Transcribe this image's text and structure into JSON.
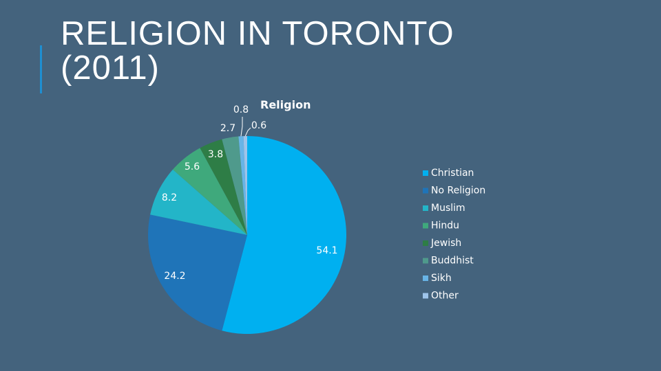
{
  "slide": {
    "title_line1": "RELIGION IN TORONTO",
    "title_line2": "(2011)"
  },
  "chart_data": {
    "type": "pie",
    "title": "Religion",
    "categories": [
      "Christian",
      "No Religion",
      "Muslim",
      "Hindu",
      "Jewish",
      "Buddhist",
      "Sikh",
      "Other"
    ],
    "values": [
      54.1,
      24.2,
      8.2,
      5.6,
      3.8,
      2.7,
      0.8,
      0.6
    ],
    "labels": [
      "54.1",
      "24.2",
      "8.2",
      "5.6",
      "3.8",
      "2.7",
      "0.8",
      "0.6"
    ],
    "colors": [
      "#00b0f0",
      "#1f74b8",
      "#23b5c8",
      "#3fa97c",
      "#2e7d46",
      "#4f9a8c",
      "#68b4e6",
      "#9ec4ea"
    ],
    "legend_position": "right",
    "start_angle": "12 o'clock, clockwise"
  }
}
